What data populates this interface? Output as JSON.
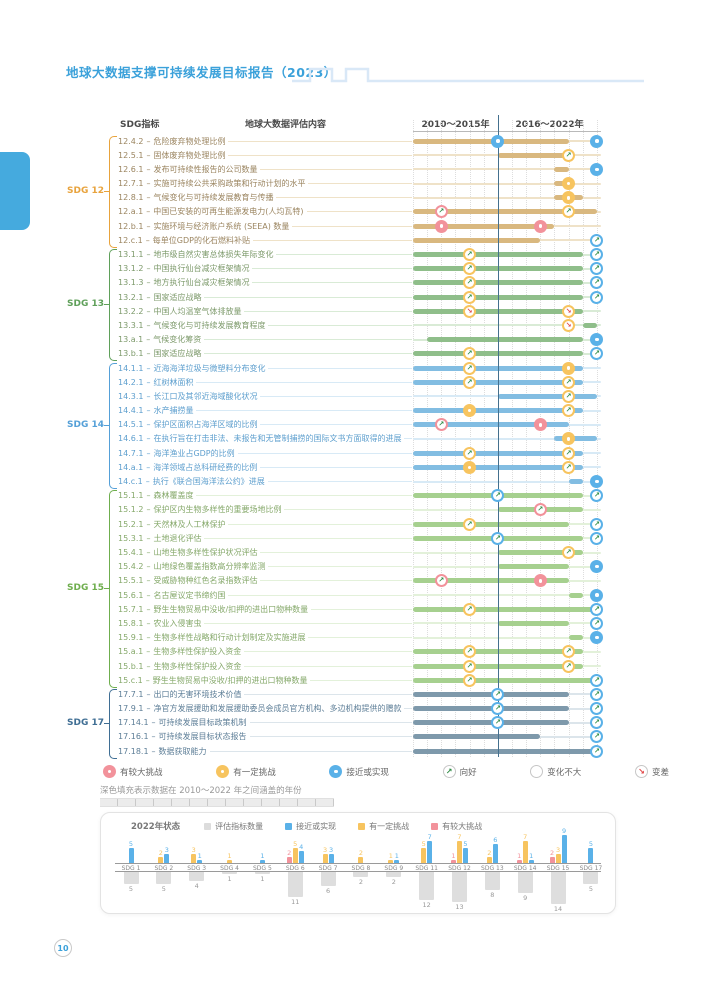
{
  "header": {
    "title": "地球大数据支撑可持续发展目标报告（2023）"
  },
  "table": {
    "columns": {
      "sdg": "SDG指标",
      "content": "地球大数据评估内容",
      "period1": "2010～2015年",
      "period2": "2016～2022年"
    }
  },
  "status_colors": {
    "challenge": "#F2929B",
    "some": "#F7C45F",
    "near": "#5AB1E8"
  },
  "groups": [
    {
      "name": "SDG 12",
      "label_color": "#E8A33D",
      "text_color": "#9B8560",
      "bar_color": "#D9B87F",
      "pale_color": "#EFE2C8",
      "rows": [
        {
          "code": "12.4.2",
          "label": "危险废弃物处理比例",
          "bar": [
            0,
            11
          ],
          "markers": [
            {
              "u": 6,
              "status": "near",
              "trend": "flat"
            },
            {
              "u": 13,
              "status": "near",
              "trend": "flat"
            }
          ]
        },
        {
          "code": "12.5.1",
          "label": "固体废弃物处理比例",
          "bar": [
            6,
            11
          ],
          "markers": [
            {
              "u": 11,
              "status": "some",
              "trend": "up"
            }
          ]
        },
        {
          "code": "12.6.1",
          "label": "发布可持续性报告的公司数量",
          "bar": [
            10,
            11
          ],
          "markers": [
            {
              "u": 13,
              "status": "near",
              "trend": "flat"
            }
          ]
        },
        {
          "code": "12.7.1",
          "label": "实施可持续公共采购政策和行动计划的水平",
          "bar": [
            10,
            11
          ],
          "markers": [
            {
              "u": 11,
              "status": "some",
              "trend": "flat"
            }
          ]
        },
        {
          "code": "12.8.1",
          "label": "气候变化与可持续发展教育与传播",
          "bar": [
            10,
            12
          ],
          "markers": [
            {
              "u": 11,
              "status": "some",
              "trend": "flat"
            }
          ]
        },
        {
          "code": "12.a.1",
          "label": "中国已安装的可再生能源发电力(人均瓦特)",
          "bar": [
            0,
            13
          ],
          "markers": [
            {
              "u": 2,
              "status": "challenge",
              "trend": "up"
            },
            {
              "u": 11,
              "status": "some",
              "trend": "up"
            }
          ]
        },
        {
          "code": "12.b.1",
          "label": "实施环境与经济账户系统 (SEEA) 数量",
          "bar": [
            0,
            10
          ],
          "markers": [
            {
              "u": 2,
              "status": "challenge",
              "trend": "flat"
            },
            {
              "u": 9,
              "status": "challenge",
              "trend": "flat"
            }
          ]
        },
        {
          "code": "12.c.1",
          "label": "每单位GDP的化石燃料补贴",
          "bar": [
            0,
            9
          ],
          "markers": [
            {
              "u": 13,
              "status": "near",
              "trend": "up"
            }
          ]
        }
      ]
    },
    {
      "name": "SDG 13",
      "label_color": "#5FA05A",
      "text_color": "#7D9A6B",
      "bar_color": "#8FBE8A",
      "pale_color": "#D9EBD6",
      "rows": [
        {
          "code": "13.1.1",
          "label": "地市级自然灾害总体损失年际变化",
          "bar": [
            0,
            12
          ],
          "markers": [
            {
              "u": 4,
              "status": "some",
              "trend": "up"
            },
            {
              "u": 13,
              "status": "near",
              "trend": "up"
            }
          ]
        },
        {
          "code": "13.1.2",
          "label": "中国执行仙台减灾框架情况",
          "bar": [
            0,
            12
          ],
          "markers": [
            {
              "u": 4,
              "status": "some",
              "trend": "up"
            },
            {
              "u": 13,
              "status": "near",
              "trend": "up"
            }
          ]
        },
        {
          "code": "13.1.3",
          "label": "地方执行仙台减灾框架情况",
          "bar": [
            0,
            12
          ],
          "markers": [
            {
              "u": 4,
              "status": "some",
              "trend": "up"
            },
            {
              "u": 13,
              "status": "near",
              "trend": "up"
            }
          ]
        },
        {
          "code": "13.2.1",
          "label": "国家适应战略",
          "bar": [
            0,
            12
          ],
          "markers": [
            {
              "u": 4,
              "status": "some",
              "trend": "up"
            },
            {
              "u": 13,
              "status": "near",
              "trend": "up"
            }
          ]
        },
        {
          "code": "13.2.2",
          "label": "中国人均温室气体排放量",
          "bar": [
            0,
            12
          ],
          "markers": [
            {
              "u": 4,
              "status": "some",
              "trend": "down"
            },
            {
              "u": 11,
              "status": "some",
              "trend": "down"
            }
          ]
        },
        {
          "code": "13.3.1",
          "label": "气候变化与可持续发展教育程度",
          "bar": [
            12,
            13
          ],
          "markers": [
            {
              "u": 11,
              "status": "some",
              "trend": "down"
            }
          ]
        },
        {
          "code": "13.a.1",
          "label": "气候变化筹资",
          "bar": [
            1,
            12
          ],
          "markers": [
            {
              "u": 13,
              "status": "near",
              "trend": "flat"
            }
          ]
        },
        {
          "code": "13.b.1",
          "label": "国家适应战略",
          "bar": [
            0,
            12
          ],
          "markers": [
            {
              "u": 4,
              "status": "some",
              "trend": "up"
            },
            {
              "u": 13,
              "status": "near",
              "trend": "up"
            }
          ]
        }
      ]
    },
    {
      "name": "SDG 14",
      "label_color": "#55A0D8",
      "text_color": "#5E9FCE",
      "bar_color": "#82BDE2",
      "pale_color": "#D8EAF6",
      "rows": [
        {
          "code": "14.1.1",
          "label": "近海海洋垃圾与微塑料分布变化",
          "bar": [
            0,
            12
          ],
          "markers": [
            {
              "u": 4,
              "status": "some",
              "trend": "up"
            },
            {
              "u": 11,
              "status": "some",
              "trend": "flat"
            }
          ]
        },
        {
          "code": "14.2.1",
          "label": "红树林面积",
          "bar": [
            0,
            12
          ],
          "markers": [
            {
              "u": 4,
              "status": "some",
              "trend": "up"
            },
            {
              "u": 11,
              "status": "some",
              "trend": "up"
            }
          ]
        },
        {
          "code": "14.3.1",
          "label": "长江口及其邻近海域酸化状况",
          "bar": [
            6,
            13
          ],
          "markers": [
            {
              "u": 11,
              "status": "some",
              "trend": "up"
            }
          ]
        },
        {
          "code": "14.4.1",
          "label": "水产捕捞量",
          "bar": [
            0,
            12
          ],
          "markers": [
            {
              "u": 4,
              "status": "some",
              "trend": "flat"
            },
            {
              "u": 11,
              "status": "some",
              "trend": "up"
            }
          ]
        },
        {
          "code": "14.5.1",
          "label": "保护区面积占海洋区域的比例",
          "bar": [
            0,
            11
          ],
          "markers": [
            {
              "u": 2,
              "status": "challenge",
              "trend": "up"
            },
            {
              "u": 9,
              "status": "challenge",
              "trend": "flat"
            }
          ]
        },
        {
          "code": "14.6.1",
          "label": "在执行旨在打击非法、未报告和无管制捕捞的国际文书方面取得的进展",
          "bar": [
            10,
            13
          ],
          "markers": [
            {
              "u": 11,
              "status": "some",
              "trend": "flat"
            }
          ]
        },
        {
          "code": "14.7.1",
          "label": "海洋渔业占GDP的比例",
          "bar": [
            0,
            12
          ],
          "markers": [
            {
              "u": 4,
              "status": "some",
              "trend": "up"
            },
            {
              "u": 11,
              "status": "some",
              "trend": "up"
            }
          ]
        },
        {
          "code": "14.a.1",
          "label": "海洋领域占总科研经费的比例",
          "bar": [
            0,
            12
          ],
          "markers": [
            {
              "u": 4,
              "status": "some",
              "trend": "flat"
            },
            {
              "u": 11,
              "status": "some",
              "trend": "up"
            }
          ]
        },
        {
          "code": "14.c.1",
          "label": "执行《联合国海洋法公约》进展",
          "bar": [
            11,
            12
          ],
          "markers": [
            {
              "u": 13,
              "status": "near",
              "trend": "flat"
            }
          ]
        }
      ]
    },
    {
      "name": "SDG 15",
      "label_color": "#6FAE4E",
      "text_color": "#86A96B",
      "bar_color": "#A6D08F",
      "pale_color": "#E3F1DA",
      "rows": [
        {
          "code": "15.1.1",
          "label": "森林覆盖度",
          "bar": [
            0,
            12
          ],
          "markers": [
            {
              "u": 6,
              "status": "near",
              "trend": "up"
            },
            {
              "u": 13,
              "status": "near",
              "trend": "up"
            }
          ]
        },
        {
          "code": "15.1.2",
          "label": "保护区内生物多样性的重要场地比例",
          "bar": [
            6,
            12
          ],
          "markers": [
            {
              "u": 9,
              "status": "challenge",
              "trend": "up"
            }
          ]
        },
        {
          "code": "15.2.1",
          "label": "天然林及人工林保护",
          "bar": [
            0,
            11
          ],
          "markers": [
            {
              "u": 4,
              "status": "some",
              "trend": "up"
            },
            {
              "u": 13,
              "status": "near",
              "trend": "up"
            }
          ]
        },
        {
          "code": "15.3.1",
          "label": "土地退化评估",
          "bar": [
            0,
            12
          ],
          "markers": [
            {
              "u": 6,
              "status": "near",
              "trend": "up"
            },
            {
              "u": 13,
              "status": "near",
              "trend": "up"
            }
          ]
        },
        {
          "code": "15.4.1",
          "label": "山地生物多样性保护状况评估",
          "bar": [
            6,
            12
          ],
          "markers": [
            {
              "u": 11,
              "status": "some",
              "trend": "up"
            }
          ]
        },
        {
          "code": "15.4.2",
          "label": "山地绿色覆盖指数高分辨率监测",
          "bar": [
            6,
            11
          ],
          "markers": [
            {
              "u": 13,
              "status": "near",
              "trend": "flat"
            }
          ]
        },
        {
          "code": "15.5.1",
          "label": "受威胁物种红色名录指数评估",
          "bar": [
            0,
            11
          ],
          "markers": [
            {
              "u": 2,
              "status": "challenge",
              "trend": "up"
            },
            {
              "u": 9,
              "status": "challenge",
              "trend": "flat"
            }
          ]
        },
        {
          "code": "15.6.1",
          "label": "名古屋议定书缔约国",
          "bar": [
            11,
            12
          ],
          "markers": [
            {
              "u": 13,
              "status": "near",
              "trend": "flat"
            }
          ]
        },
        {
          "code": "15.7.1",
          "label": "野生生物贸易中没收/扣押的进出口物种数量",
          "bar": [
            0,
            13
          ],
          "markers": [
            {
              "u": 4,
              "status": "some",
              "trend": "up"
            },
            {
              "u": 13,
              "status": "near",
              "trend": "up"
            }
          ]
        },
        {
          "code": "15.8.1",
          "label": "农业入侵害虫",
          "bar": [
            6,
            11
          ],
          "markers": [
            {
              "u": 13,
              "status": "near",
              "trend": "up"
            }
          ]
        },
        {
          "code": "15.9.1",
          "label": "生物多样性战略和行动计划制定及实施进展",
          "bar": [
            11,
            12
          ],
          "markers": [
            {
              "u": 13,
              "status": "near",
              "trend": "flat"
            }
          ]
        },
        {
          "code": "15.a.1",
          "label": "生物多样性保护投入资金",
          "bar": [
            0,
            12
          ],
          "markers": [
            {
              "u": 4,
              "status": "some",
              "trend": "up"
            },
            {
              "u": 11,
              "status": "some",
              "trend": "up"
            }
          ]
        },
        {
          "code": "15.b.1",
          "label": "生物多样性保护投入资金",
          "bar": [
            0,
            12
          ],
          "markers": [
            {
              "u": 4,
              "status": "some",
              "trend": "up"
            },
            {
              "u": 11,
              "status": "some",
              "trend": "up"
            }
          ]
        },
        {
          "code": "15.c.1",
          "label": "野生生物贸易中没收/扣押的进出口物种数量",
          "bar": [
            0,
            13
          ],
          "markers": [
            {
              "u": 4,
              "status": "some",
              "trend": "up"
            },
            {
              "u": 13,
              "status": "near",
              "trend": "up"
            }
          ]
        }
      ]
    },
    {
      "name": "SDG 17",
      "label_color": "#3F6E94",
      "text_color": "#5D7E97",
      "bar_color": "#7E99AB",
      "pale_color": "#DCE5EB",
      "rows": [
        {
          "code": "17.7.1",
          "label": "出口的无害环境技术价值",
          "bar": [
            0,
            11
          ],
          "markers": [
            {
              "u": 6,
              "status": "near",
              "trend": "up"
            },
            {
              "u": 13,
              "status": "near",
              "trend": "up"
            }
          ]
        },
        {
          "code": "17.9.1",
          "label": "净官方发展援助和发展援助委员会成员官方机构、多边机构提供的赠款",
          "bar": [
            0,
            11
          ],
          "markers": [
            {
              "u": 6,
              "status": "near",
              "trend": "up"
            },
            {
              "u": 13,
              "status": "near",
              "trend": "up"
            }
          ]
        },
        {
          "code": "17.14.1",
          "label": "可持续发展目标政策机制",
          "bar": [
            0,
            11
          ],
          "markers": [
            {
              "u": 6,
              "status": "near",
              "trend": "up"
            },
            {
              "u": 13,
              "status": "near",
              "trend": "up"
            }
          ]
        },
        {
          "code": "17.16.1",
          "label": "可持续发展目标状态报告",
          "bar": [
            0,
            9
          ],
          "markers": [
            {
              "u": 13,
              "status": "near",
              "trend": "up"
            }
          ]
        },
        {
          "code": "17.18.1",
          "label": "数据获取能力",
          "bar": [
            0,
            13
          ],
          "markers": [
            {
              "u": 13,
              "status": "near",
              "trend": "up"
            }
          ]
        }
      ]
    }
  ],
  "status_legend": [
    {
      "label": "有较大挑战",
      "icon": "challenge"
    },
    {
      "label": "有一定挑战",
      "icon": "some"
    },
    {
      "label": "接近或实现",
      "icon": "near"
    },
    {
      "label": "向好",
      "icon": "up"
    },
    {
      "label": "变化不大",
      "icon": "flat"
    },
    {
      "label": "变差",
      "icon": "down"
    }
  ],
  "note": {
    "text": "深色填充表示数据在 2010～2022 年之间涵盖的年份"
  },
  "panel": {
    "title": "2022年状态"
  },
  "chart_data": {
    "type": "bar",
    "title": "2022年状态",
    "legend": [
      "评估指标数量",
      "接近或实现",
      "有一定挑战",
      "有较大挑战"
    ],
    "legend_colors": [
      "#DCDCDC",
      "#5AB1E8",
      "#F7C45F",
      "#F2929B"
    ],
    "categories": [
      "SDG 1",
      "SDG 2",
      "SDG 3",
      "SDG 4",
      "SDG 5",
      "SDG 6",
      "SDG 7",
      "SDG 8",
      "SDG 9",
      "SDG 11",
      "SDG 12",
      "SDG 13",
      "SDG 14",
      "SDG 15",
      "SDG 17"
    ],
    "series": [
      {
        "name": "有较大挑战",
        "color": "#F2929B",
        "direction": "up",
        "values": [
          0,
          0,
          0,
          0,
          0,
          2,
          0,
          0,
          0,
          0,
          1,
          0,
          1,
          2,
          0
        ]
      },
      {
        "name": "有一定挑战",
        "color": "#F7C45F",
        "direction": "up",
        "values": [
          0,
          2,
          3,
          1,
          0,
          5,
          3,
          2,
          1,
          5,
          7,
          2,
          7,
          3,
          0
        ]
      },
      {
        "name": "接近或实现",
        "color": "#5AB1E8",
        "direction": "up",
        "values": [
          5,
          3,
          1,
          0,
          1,
          4,
          3,
          0,
          1,
          7,
          5,
          6,
          1,
          9,
          5
        ]
      },
      {
        "name": "评估指标数量",
        "color": "#DCDCDC",
        "direction": "down",
        "values": [
          5,
          5,
          4,
          1,
          1,
          11,
          6,
          2,
          2,
          12,
          13,
          8,
          9,
          14,
          5
        ]
      }
    ]
  },
  "page": {
    "number": "10"
  }
}
